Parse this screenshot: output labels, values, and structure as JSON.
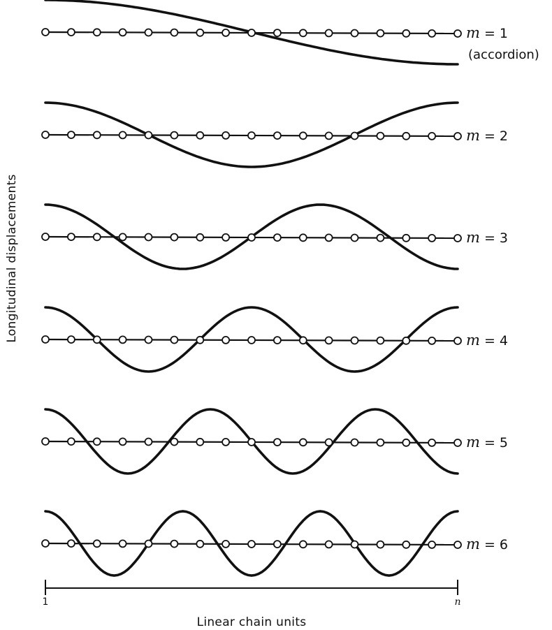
{
  "modes": [
    {
      "label": "m = 1",
      "note": "(accordion)",
      "m": 1
    },
    {
      "label": "m = 2",
      "note": "",
      "m": 2
    },
    {
      "label": "m = 3",
      "note": "",
      "m": 3
    },
    {
      "label": "m = 4",
      "note": "",
      "m": 4
    },
    {
      "label": "m = 5",
      "note": "",
      "m": 5
    },
    {
      "label": "m = 6",
      "note": "",
      "m": 6
    }
  ],
  "units_per_chain": 17,
  "y_axis_title": "Longitudinal displacements",
  "x_axis_title": "Linear chain units",
  "axis_start_label": "1",
  "axis_end_label": "n"
}
